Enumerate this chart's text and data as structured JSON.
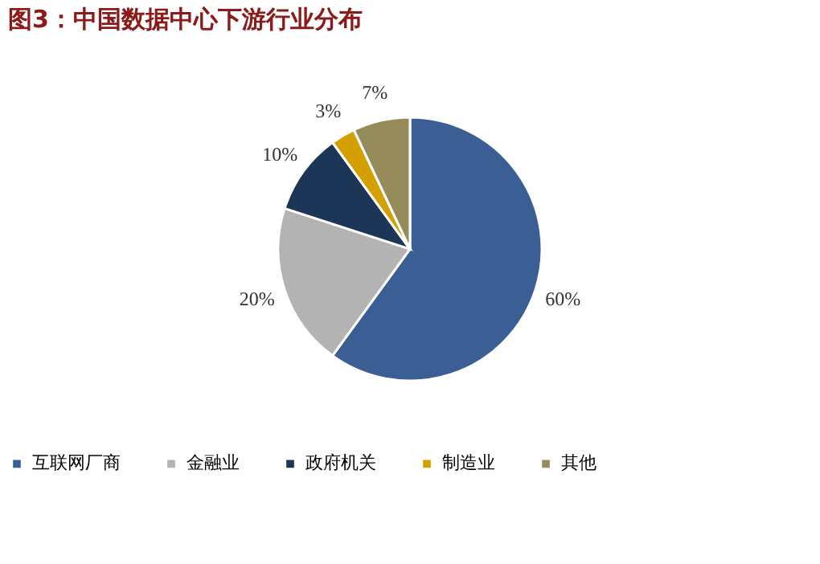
{
  "chart_data": {
    "type": "pie",
    "title": "图3：中国数据中心下游行业分布",
    "categories": [
      "互联网厂商",
      "金融业",
      "政府机关",
      "制造业",
      "其他"
    ],
    "values": [
      60,
      20,
      10,
      3,
      7
    ],
    "value_labels": [
      "60%",
      "20%",
      "10%",
      "3%",
      "7%"
    ],
    "colors": [
      "#3b5f94",
      "#b3b3b3",
      "#1d3557",
      "#d4a000",
      "#968c5b"
    ],
    "legend": "bottom"
  }
}
